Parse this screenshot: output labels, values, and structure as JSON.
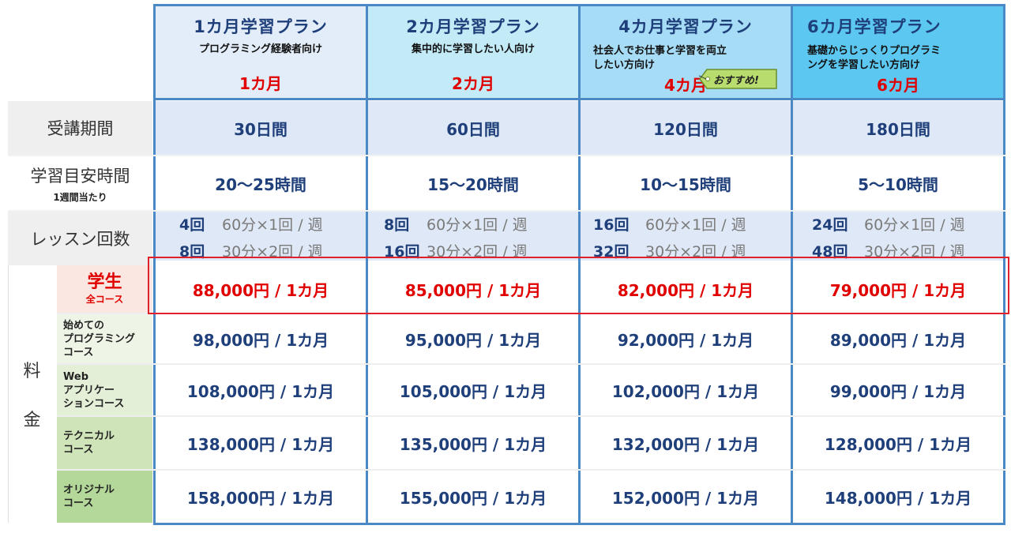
{
  "plans": [
    {
      "title": "1カ月学習プラン",
      "desc": "プログラミング経験者向け",
      "duration": "1カ月"
    },
    {
      "title": "2カ月学習プラン",
      "desc": "集中的に学習したい人向け",
      "duration": "2カ月"
    },
    {
      "title": "4カ月学習プラン",
      "desc_line1": "社会人でお仕事と学習を両立",
      "desc_line2": "したい方向け",
      "duration": "4カ月",
      "badge": "おすすめ!"
    },
    {
      "title": "6カ月学習プラン",
      "desc_line1": "基礎からじっくりプログラミ",
      "desc_line2": "ングを学習したい方向け",
      "duration": "6カ月"
    }
  ],
  "rows": {
    "period": {
      "label": "受講期間",
      "values": [
        "30日間",
        "60日間",
        "120日間",
        "180日間"
      ]
    },
    "study_time": {
      "label": "学習目安時間",
      "sublabel": "1週間当たり",
      "values": [
        "20〜25時間",
        "15〜20時間",
        "10〜15時間",
        "5〜10時間"
      ]
    },
    "lessons": {
      "label": "レッスン回数",
      "values": [
        [
          {
            "count": "4回",
            "detail": "60分×1回 / 週"
          },
          {
            "count": "8回",
            "detail": "30分×2回 / 週"
          }
        ],
        [
          {
            "count": "8回",
            "detail": "60分×1回 / 週"
          },
          {
            "count": "16回",
            "detail": "30分×2回 / 週"
          }
        ],
        [
          {
            "count": "16回",
            "detail": "60分×1回 / 週"
          },
          {
            "count": "32回",
            "detail": "30分×2回 / 週"
          }
        ],
        [
          {
            "count": "24回",
            "detail": "60分×1回 / 週"
          },
          {
            "count": "48回",
            "detail": "30分×2回 / 週"
          }
        ]
      ]
    }
  },
  "fees": {
    "label_line1": "料",
    "label_line2": "金",
    "courses": [
      {
        "name_line1": "学生",
        "name_line2": "全コース",
        "prices": [
          "88,000円 / 1カ月",
          "85,000円 / 1カ月",
          "82,000円 / 1カ月",
          "79,000円 / 1カ月"
        ]
      },
      {
        "name_lines": [
          "始めての",
          "プログラミング",
          "コース"
        ],
        "prices": [
          "98,000円 / 1カ月",
          "95,000円 / 1カ月",
          "92,000円 / 1カ月",
          "89,000円 / 1カ月"
        ]
      },
      {
        "name_lines": [
          "Web",
          "アプリケー",
          "ションコース"
        ],
        "prices": [
          "108,000円 / 1カ月",
          "105,000円 / 1カ月",
          "102,000円 / 1カ月",
          "99,000円 / 1カ月"
        ]
      },
      {
        "name_lines": [
          "テクニカル",
          "コース"
        ],
        "prices": [
          "138,000円 / 1カ月",
          "135,000円 / 1カ月",
          "132,000円 / 1カ月",
          "128,000円 / 1カ月"
        ]
      },
      {
        "name_lines": [
          "オリジナル",
          "コース"
        ],
        "prices": [
          "158,000円 / 1カ月",
          "155,000円 / 1カ月",
          "152,000円 / 1カ月",
          "148,000円 / 1カ月"
        ]
      }
    ]
  },
  "colors": {
    "accent_blue": "#1f3f7a",
    "highlight_red": "#e00000",
    "border_blue": "#4a88c6"
  }
}
